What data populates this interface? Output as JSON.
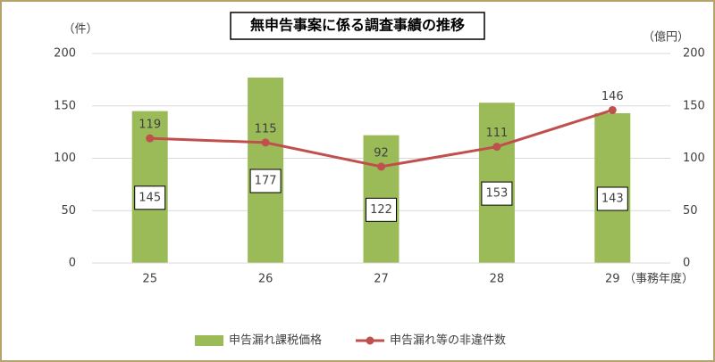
{
  "chart_data": {
    "type": "combo",
    "title": "無申告事案に係る調査事績の推移",
    "categories": [
      "25",
      "26",
      "27",
      "28",
      "29"
    ],
    "x_label": "（事務年度）",
    "y_label": "（件）",
    "y2_label": "（億円）",
    "ylim": [
      0,
      200
    ],
    "yticks": [
      0,
      50,
      100,
      150,
      200
    ],
    "y2lim": [
      0,
      200
    ],
    "y2ticks": [
      0,
      50,
      100,
      150,
      200
    ],
    "grid": true,
    "legend": "bottom",
    "series": [
      {
        "name": "申告漏れ課税価格",
        "type": "bar",
        "axis": "y2",
        "color": "#9bbb59",
        "values": [
          145,
          177,
          122,
          153,
          143
        ]
      },
      {
        "name": "申告漏れ等の非違件数",
        "type": "line",
        "color": "#c0504d",
        "values": [
          119,
          115,
          92,
          111,
          146
        ]
      }
    ]
  }
}
